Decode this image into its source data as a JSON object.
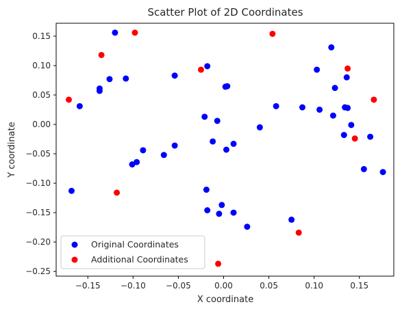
{
  "chart_data": {
    "type": "scatter",
    "title": "Scatter Plot of 2D Coordinates",
    "xlabel": "X coordinate",
    "ylabel": "Y coordinate",
    "xlim": [
      -0.185,
      0.188
    ],
    "ylim": [
      -0.258,
      0.172
    ],
    "x_ticks": [
      -0.15,
      -0.1,
      -0.05,
      0.0,
      0.05,
      0.1,
      0.15
    ],
    "x_tick_labels": [
      "−0.15",
      "−0.10",
      "−0.05",
      "0.00",
      "0.05",
      "0.10",
      "0.15"
    ],
    "y_ticks": [
      -0.25,
      -0.2,
      -0.15,
      -0.1,
      -0.05,
      0.0,
      0.05,
      0.1,
      0.15
    ],
    "y_tick_labels": [
      "−0.25",
      "−0.20",
      "−0.15",
      "−0.10",
      "−0.05",
      "0.00",
      "0.05",
      "0.10",
      "0.15"
    ],
    "grid": false,
    "legend_position": "lower-left",
    "series": [
      {
        "name": "Original Coordinates",
        "color": "#0000ff",
        "points": [
          [
            -0.12,
            0.156
          ],
          [
            -0.159,
            0.031
          ],
          [
            -0.137,
            0.061
          ],
          [
            -0.137,
            0.057
          ],
          [
            -0.126,
            0.077
          ],
          [
            -0.108,
            0.078
          ],
          [
            -0.168,
            -0.113
          ],
          [
            -0.101,
            -0.068
          ],
          [
            -0.096,
            -0.064
          ],
          [
            -0.089,
            -0.044
          ],
          [
            -0.066,
            -0.052
          ],
          [
            -0.054,
            -0.036
          ],
          [
            -0.054,
            0.083
          ],
          [
            -0.018,
            0.099
          ],
          [
            -0.021,
            0.013
          ],
          [
            -0.012,
            -0.029
          ],
          [
            -0.007,
            0.006
          ],
          [
            0.002,
            0.064
          ],
          [
            0.004,
            0.065
          ],
          [
            0.003,
            -0.043
          ],
          [
            0.011,
            -0.033
          ],
          [
            -0.019,
            -0.111
          ],
          [
            -0.018,
            -0.146
          ],
          [
            -0.002,
            -0.137
          ],
          [
            -0.005,
            -0.152
          ],
          [
            0.011,
            -0.15
          ],
          [
            0.026,
            -0.174
          ],
          [
            0.04,
            -0.005
          ],
          [
            0.058,
            0.031
          ],
          [
            0.075,
            -0.162
          ],
          [
            0.087,
            0.029
          ],
          [
            0.103,
            0.093
          ],
          [
            0.106,
            0.025
          ],
          [
            0.119,
            0.131
          ],
          [
            0.121,
            0.015
          ],
          [
            0.123,
            0.062
          ],
          [
            0.134,
            0.029
          ],
          [
            0.136,
            0.08
          ],
          [
            0.137,
            0.028
          ],
          [
            0.133,
            -0.018
          ],
          [
            0.141,
            -0.001
          ],
          [
            0.162,
            -0.021
          ],
          [
            0.155,
            -0.076
          ],
          [
            0.176,
            -0.081
          ]
        ]
      },
      {
        "name": "Additional Coordinates",
        "color": "#ff0000",
        "points": [
          [
            -0.171,
            0.042
          ],
          [
            -0.135,
            0.118
          ],
          [
            -0.098,
            0.156
          ],
          [
            -0.118,
            -0.116
          ],
          [
            -0.025,
            0.093
          ],
          [
            0.054,
            0.154
          ],
          [
            0.083,
            -0.184
          ],
          [
            -0.006,
            -0.237
          ],
          [
            0.137,
            0.095
          ],
          [
            0.145,
            -0.024
          ],
          [
            0.166,
            0.042
          ]
        ]
      }
    ]
  }
}
